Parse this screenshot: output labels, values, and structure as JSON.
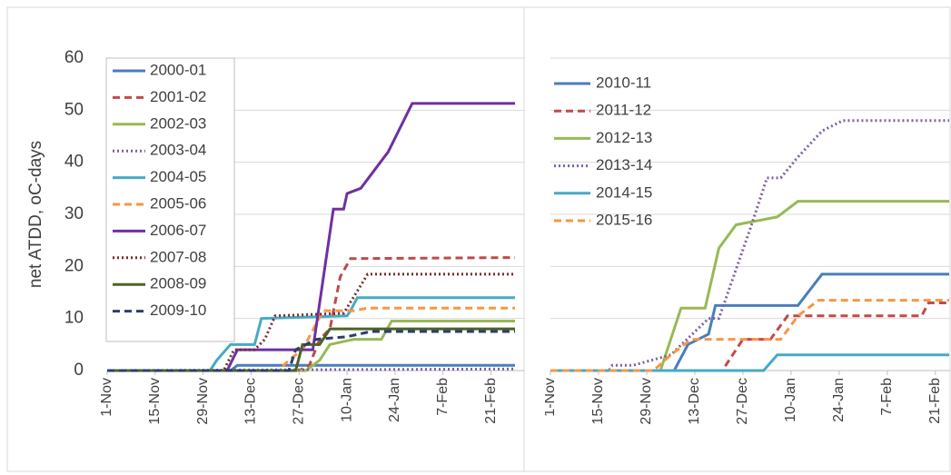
{
  "chart_data": [
    {
      "type": "line",
      "ylabel": "net ATDD, oC-days",
      "xlim": [
        "1-Nov",
        "28-Feb"
      ],
      "xticks": [
        "1-Nov",
        "15-Nov",
        "29-Nov",
        "13-Dec",
        "27-Dec",
        "10-Jan",
        "24-Jan",
        "7-Feb",
        "21-Feb"
      ],
      "ylim": [
        0,
        60
      ],
      "yticks": [
        0,
        10,
        20,
        30,
        40,
        50,
        60
      ],
      "ytick_labels": true,
      "grid": true,
      "legend": "upper left",
      "legend_box": true,
      "series": [
        {
          "name": "2000-01",
          "color": "#4a7ebb",
          "dash": "solid",
          "x": [
            "1-Nov",
            "7-Dec",
            "9-Dec",
            "28-Feb"
          ],
          "values": [
            0,
            0,
            1,
            1
          ]
        },
        {
          "name": "2001-02",
          "color": "#be4b48",
          "dash": "dashed",
          "x": [
            "1-Nov",
            "27-Dec",
            "30-Dec",
            "2-Jan",
            "5-Jan",
            "8-Jan",
            "11-Jan",
            "28-Feb"
          ],
          "values": [
            0,
            0,
            1,
            6,
            8,
            18,
            21.5,
            21.7
          ]
        },
        {
          "name": "2002-03",
          "color": "#98b954",
          "dash": "solid",
          "x": [
            "1-Nov",
            "29-Dec",
            "2-Jan",
            "5-Jan",
            "12-Jan",
            "20-Jan",
            "23-Jan",
            "28-Feb"
          ],
          "values": [
            0,
            0,
            2,
            5,
            6,
            6,
            9.5,
            9.5
          ]
        },
        {
          "name": "2003-04",
          "color": "#7d60a0",
          "dash": "dotted",
          "x": [
            "1-Nov",
            "28-Feb"
          ],
          "values": [
            0,
            0.3
          ]
        },
        {
          "name": "2004-05",
          "color": "#46aac5",
          "dash": "solid",
          "x": [
            "1-Nov",
            "1-Dec",
            "3-Dec",
            "7-Dec",
            "14-Dec",
            "16-Dec",
            "10-Jan",
            "11-Jan",
            "13-Jan",
            "28-Feb"
          ],
          "values": [
            0,
            0,
            2,
            5,
            5,
            10,
            10.5,
            11.5,
            14,
            14
          ]
        },
        {
          "name": "2005-06",
          "color": "#f79646",
          "dash": "dashed",
          "x": [
            "1-Nov",
            "21-Dec",
            "24-Dec",
            "28-Dec",
            "1-Jan",
            "3-Jan",
            "12-Jan",
            "16-Jan",
            "28-Feb"
          ],
          "values": [
            0,
            0,
            2,
            4,
            9,
            11.5,
            11.5,
            12,
            12
          ]
        },
        {
          "name": "2006-07",
          "color": "#7030a0",
          "dash": "solid",
          "x": [
            "1-Nov",
            "6-Dec",
            "9-Dec",
            "31-Dec",
            "6-Jan",
            "9-Jan",
            "10-Jan",
            "14-Jan",
            "22-Jan",
            "29-Jan",
            "28-Feb"
          ],
          "values": [
            0,
            0,
            4,
            4,
            31,
            31,
            34,
            35,
            42,
            51.3,
            51.3
          ]
        },
        {
          "name": "2007-08",
          "color": "#772c2a",
          "dash": "dotted",
          "x": [
            "1-Nov",
            "5-Dec",
            "8-Dec",
            "14-Dec",
            "17-Dec",
            "20-Dec",
            "9-Jan",
            "16-Jan",
            "28-Feb"
          ],
          "values": [
            0,
            0,
            4,
            4,
            6,
            10.5,
            11,
            18.5,
            18.5
          ]
        },
        {
          "name": "2008-09",
          "color": "#4f6228",
          "dash": "solid",
          "x": [
            "1-Nov",
            "26-Dec",
            "28-Dec",
            "2-Jan",
            "5-Jan",
            "28-Feb"
          ],
          "values": [
            0,
            0,
            5,
            5,
            8,
            8
          ]
        },
        {
          "name": "2009-10",
          "color": "#2c3e6b",
          "dash": "dashed",
          "x": [
            "1-Nov",
            "24-Dec",
            "26-Dec",
            "1-Jan",
            "10-Jan",
            "17-Jan",
            "28-Feb"
          ],
          "values": [
            0,
            0,
            4,
            6,
            6.5,
            7.5,
            7.5
          ]
        }
      ]
    },
    {
      "type": "line",
      "xlim": [
        "1-Nov",
        "25-Feb"
      ],
      "xticks": [
        "1-Nov",
        "15-Nov",
        "29-Nov",
        "13-Dec",
        "27-Dec",
        "10-Jan",
        "24-Jan",
        "7-Feb",
        "21-Feb"
      ],
      "ylim": [
        0,
        60
      ],
      "yticks": [
        0,
        10,
        20,
        30,
        40,
        50,
        60
      ],
      "ytick_labels": false,
      "grid": true,
      "legend": "upper left",
      "legend_box": false,
      "series": [
        {
          "name": "2010-11",
          "color": "#4a7ebb",
          "dash": "solid",
          "x": [
            "1-Nov",
            "7-Dec",
            "11-Dec",
            "17-Dec",
            "19-Dec",
            "12-Jan",
            "19-Jan",
            "25-Feb"
          ],
          "values": [
            0,
            0,
            5,
            7,
            12.5,
            12.5,
            18.5,
            18.5
          ]
        },
        {
          "name": "2011-12",
          "color": "#be4b48",
          "dash": "dashed",
          "x": [
            "1-Nov",
            "21-Dec",
            "27-Dec",
            "4-Jan",
            "9-Jan",
            "17-Feb",
            "19-Feb",
            "25-Feb"
          ],
          "values": [
            0,
            0,
            6,
            6,
            10.5,
            10.5,
            13,
            13
          ]
        },
        {
          "name": "2012-13",
          "color": "#98b954",
          "dash": "solid",
          "x": [
            "1-Nov",
            "3-Dec",
            "9-Dec",
            "16-Dec",
            "20-Dec",
            "25-Dec",
            "6-Jan",
            "12-Jan",
            "25-Feb"
          ],
          "values": [
            0,
            0,
            12,
            12,
            23.5,
            28,
            29.5,
            32.5,
            32.5
          ]
        },
        {
          "name": "2013-14",
          "color": "#7d60a0",
          "dash": "dotted",
          "x": [
            "1-Nov",
            "18-Nov",
            "19-Nov",
            "25-Nov",
            "6-Dec",
            "17-Dec",
            "20-Dec",
            "29-Dec",
            "3-Jan",
            "7-Jan",
            "12-Jan",
            "19-Jan",
            "25-Jan",
            "25-Feb"
          ],
          "values": [
            0,
            0,
            1,
            1,
            3,
            10,
            10,
            27,
            37,
            37,
            41,
            46,
            48,
            48
          ]
        },
        {
          "name": "2014-15",
          "color": "#46aac5",
          "dash": "solid",
          "x": [
            "1-Nov",
            "2-Jan",
            "6-Jan",
            "25-Feb"
          ],
          "values": [
            0,
            0,
            3,
            3
          ]
        },
        {
          "name": "2015-16",
          "color": "#f79646",
          "dash": "dashed",
          "x": [
            "1-Nov",
            "1-Dec",
            "6-Dec",
            "12-Dec",
            "7-Jan",
            "12-Jan",
            "18-Jan",
            "25-Feb"
          ],
          "values": [
            0,
            0,
            3,
            6,
            6,
            10.5,
            13.5,
            13.5
          ]
        }
      ]
    }
  ]
}
